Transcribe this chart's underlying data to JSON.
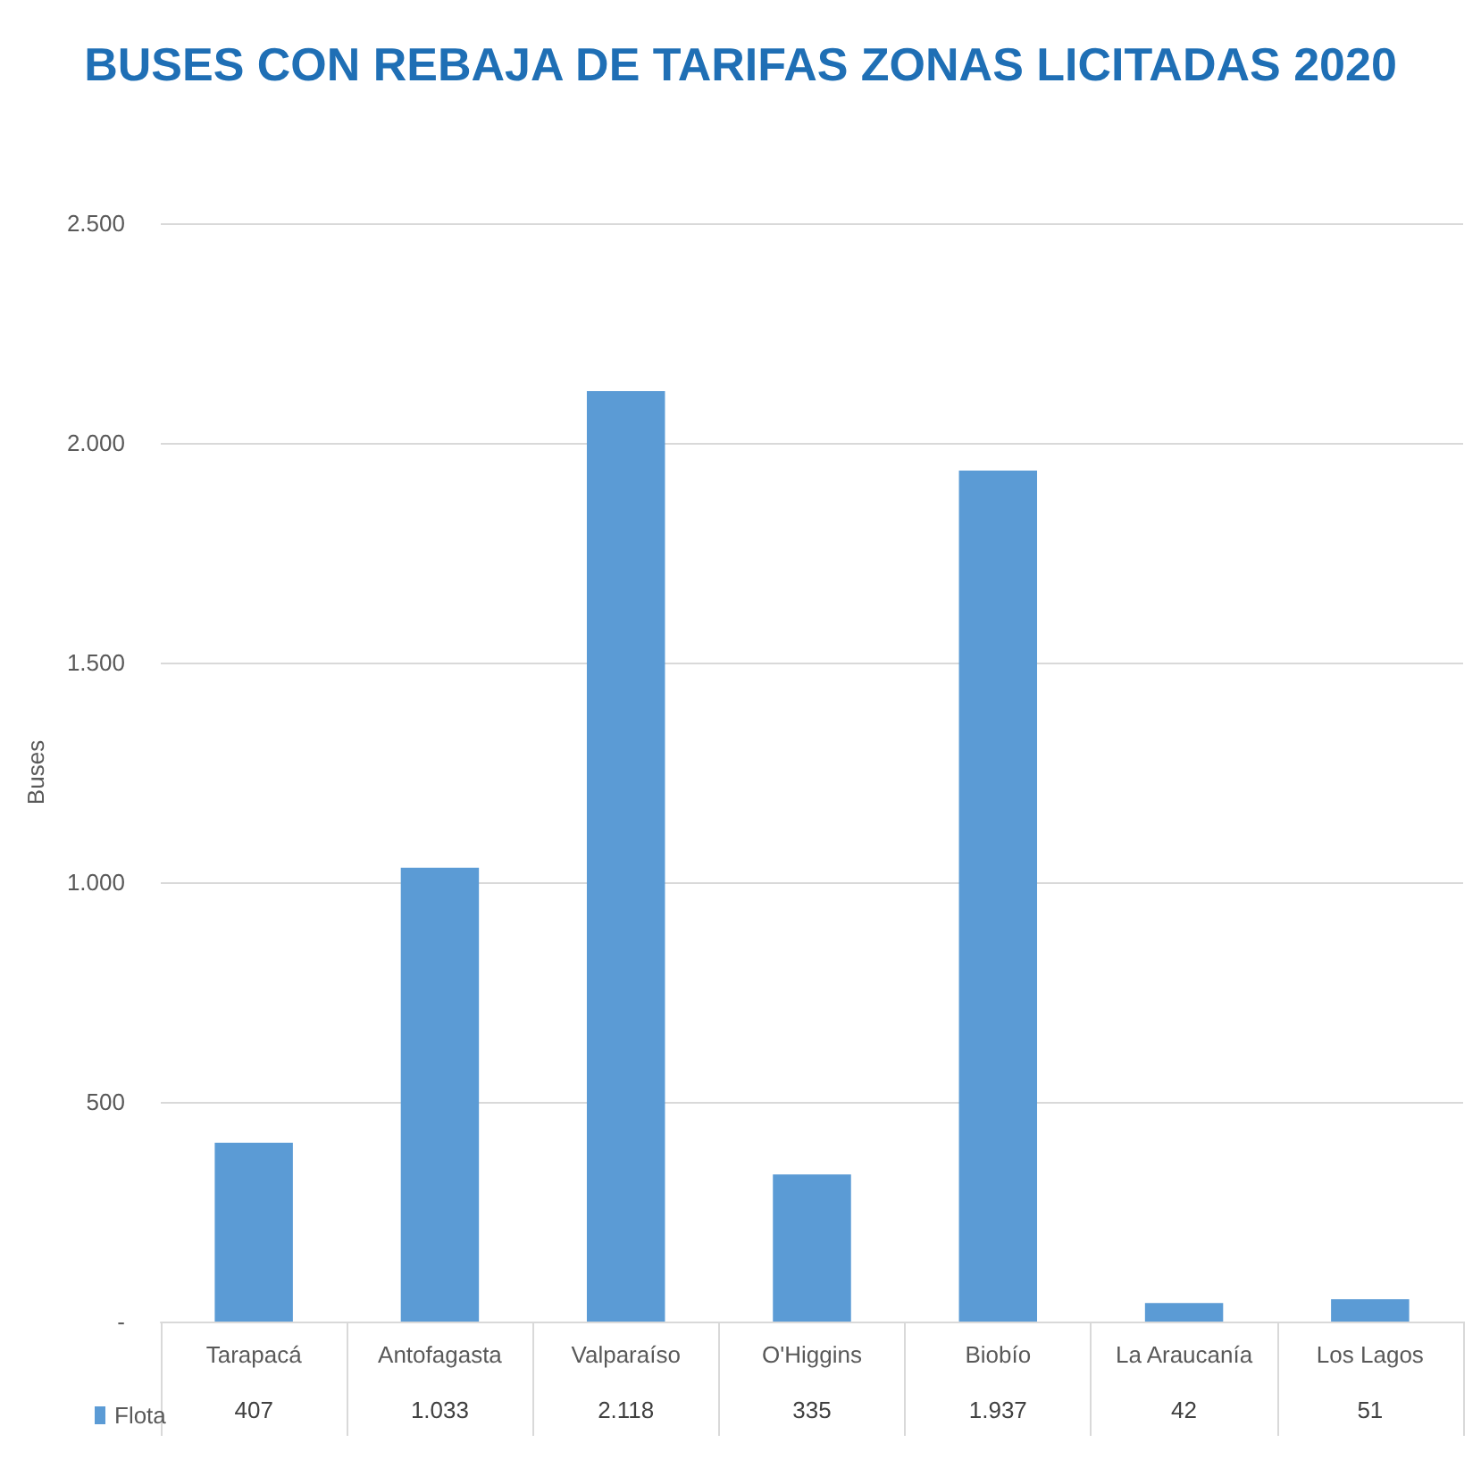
{
  "chart_data": {
    "type": "bar",
    "title": "BUSES CON REBAJA DE TARIFAS ZONAS LICITADAS 2020",
    "ylabel": "Buses",
    "categories": [
      "Tarapacá",
      "Antofagasta",
      "Valparaíso",
      "O'Higgins",
      "Biobío",
      "La Araucanía",
      "Los Lagos"
    ],
    "series": [
      {
        "name": "Flota",
        "color": "#5b9bd5",
        "values": [
          407,
          1033,
          2118,
          335,
          1937,
          42,
          51
        ],
        "value_labels": [
          "407",
          "1.033",
          "2.118",
          "335",
          "1.937",
          "42",
          "51"
        ]
      }
    ],
    "ylim": [
      0,
      2500
    ],
    "yticks": [
      {
        "value": 0,
        "label": "-"
      },
      500,
      {
        "value": 1000,
        "label": "1.000"
      },
      {
        "value": 1500,
        "label": "1.500"
      },
      {
        "value": 2000,
        "label": "2.000"
      },
      {
        "value": 2500,
        "label": "2.500"
      }
    ],
    "grid": "y",
    "legend": "bottom left"
  }
}
